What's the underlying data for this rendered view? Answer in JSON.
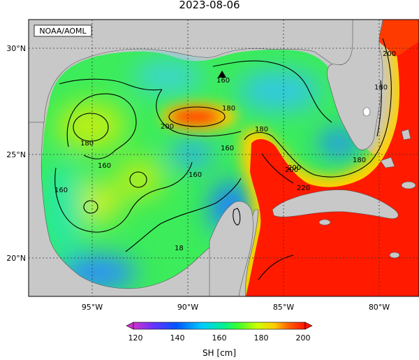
{
  "title": "2023-08-06",
  "credit": "NOAA/AOML",
  "colorbar": {
    "label": "SH [cm]",
    "ticks": [
      "120",
      "140",
      "160",
      "180",
      "200"
    ],
    "min": 115,
    "max": 205,
    "colors": [
      "#cc33cc",
      "#6633ff",
      "#0055ff",
      "#00ccff",
      "#00ee99",
      "#33ff33",
      "#ccff00",
      "#ffcc00",
      "#ff6600",
      "#ff1100"
    ]
  },
  "axes": {
    "lon_labels": [
      "95°W",
      "90°W",
      "85°W",
      "80°W"
    ],
    "lat_labels": [
      "30°N",
      "25°N",
      "20°N"
    ]
  },
  "contour_labels": [
    "180",
    "180",
    "200",
    "160",
    "180",
    "160",
    "160",
    "160",
    "180",
    "200",
    "200",
    "180",
    "200",
    "220",
    "160",
    "180",
    "160",
    "18"
  ],
  "colors": {
    "land": "#c8c8c8",
    "loop_current": "#ff1a00",
    "gulf_interior": "#44ee44",
    "eddy_warm": "#ff3300",
    "eddy_cold": "#2a8cff"
  },
  "marker": "triangle-marker"
}
